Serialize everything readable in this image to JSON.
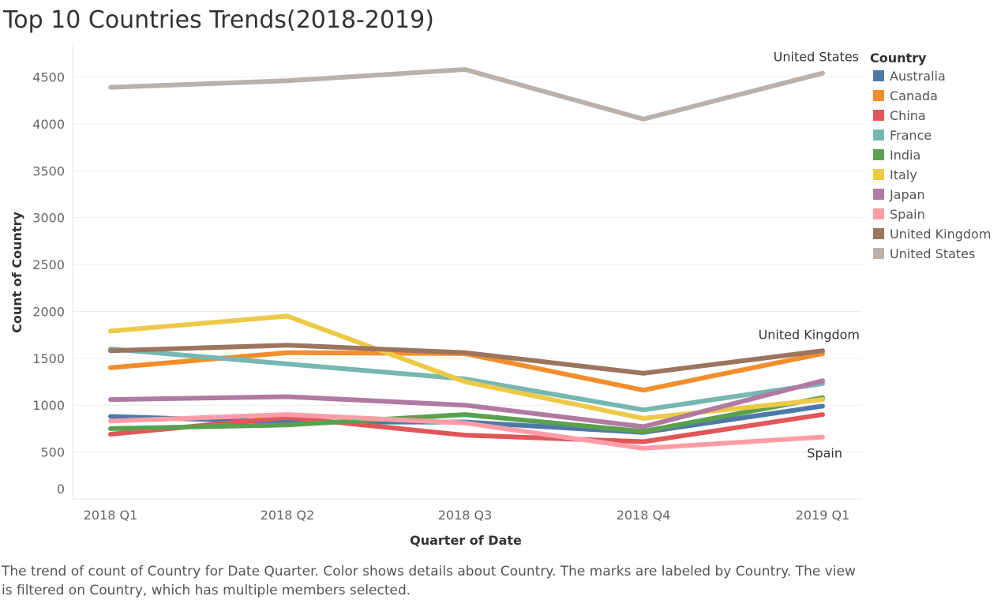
{
  "chart_data": {
    "type": "line",
    "title": "Top 10 Countries Trends(2018-2019)",
    "xlabel": "Quarter of Date",
    "ylabel": "Count of Country",
    "categories": [
      "2018 Q1",
      "2018 Q2",
      "2018 Q3",
      "2018 Q4",
      "2019 Q1"
    ],
    "ylim": [
      0,
      4700
    ],
    "yticks": [
      0,
      500,
      1000,
      1500,
      2000,
      2500,
      3000,
      3500,
      4000,
      4500
    ],
    "grid": true,
    "legend_title": "Country",
    "legend_position": "right",
    "series": [
      {
        "name": "Australia",
        "color": "#4e79a7",
        "values": [
          880,
          820,
          820,
          710,
          990
        ]
      },
      {
        "name": "Canada",
        "color": "#f28e2b",
        "values": [
          1400,
          1560,
          1550,
          1160,
          1550
        ]
      },
      {
        "name": "China",
        "color": "#e15759",
        "values": [
          690,
          870,
          680,
          610,
          900
        ]
      },
      {
        "name": "France",
        "color": "#76b7b2",
        "values": [
          1600,
          1440,
          1280,
          950,
          1230
        ]
      },
      {
        "name": "India",
        "color": "#59a14f",
        "values": [
          750,
          790,
          900,
          720,
          1080
        ]
      },
      {
        "name": "Italy",
        "color": "#edc948",
        "values": [
          1790,
          1950,
          1250,
          860,
          1060
        ]
      },
      {
        "name": "Japan",
        "color": "#b07aa1",
        "values": [
          1060,
          1090,
          1000,
          770,
          1260
        ]
      },
      {
        "name": "Spain",
        "color": "#ff9da7",
        "values": [
          830,
          900,
          810,
          540,
          660
        ]
      },
      {
        "name": "United Kingdom",
        "color": "#9c755f",
        "values": [
          1580,
          1640,
          1560,
          1340,
          1580
        ]
      },
      {
        "name": "United States",
        "color": "#bab0ac",
        "values": [
          4390,
          4460,
          4580,
          4050,
          4540
        ]
      }
    ],
    "annotations": [
      {
        "series": "United States",
        "text": "United States",
        "point": "2019 Q1"
      },
      {
        "series": "United Kingdom",
        "text": "United Kingdom",
        "point": "2019 Q1"
      },
      {
        "series": "Spain",
        "text": "Spain",
        "point": "2019 Q1"
      }
    ]
  },
  "caption": "The trend of count of Country for Date Quarter.  Color shows details about Country.  The marks are labeled by Country. The view is filtered on Country, which has multiple members selected."
}
